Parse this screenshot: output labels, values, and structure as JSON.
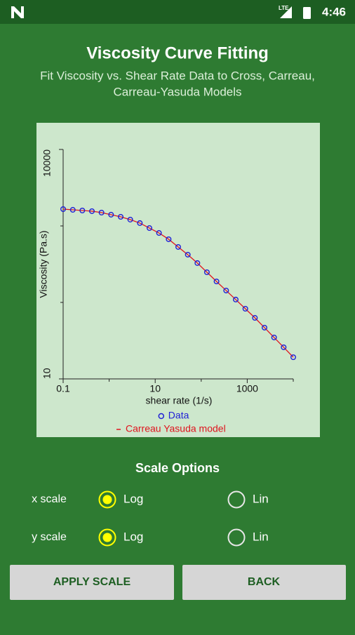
{
  "status_bar": {
    "network": "LTE",
    "time": "4:46"
  },
  "header": {
    "title": "Viscosity Curve Fitting",
    "subtitle_lines": [
      "Fit Viscosity vs. Shear Rate Data to Cross, Carreau,",
      "Carreau-Yasuda Models"
    ]
  },
  "chart_data": {
    "type": "scatter",
    "x_label": "shear rate (1/s)",
    "y_label": "Viscosity (Pa.s)",
    "x_scale": "log",
    "y_scale": "log",
    "x": [
      0.1,
      0.162,
      0.261,
      0.422,
      0.681,
      1.1,
      1.78,
      2.87,
      4.64,
      7.5,
      12.1,
      19.6,
      31.6,
      51.1,
      82.5,
      133,
      215,
      348,
      562,
      909,
      1468,
      2371,
      3831,
      6190,
      10000
    ],
    "series": [
      {
        "name": "Data",
        "style": "markers",
        "color": "#1f1fd6",
        "values": [
          1660,
          1625,
          1592,
          1560,
          1494,
          1403,
          1316,
          1210,
          1090,
          938,
          809,
          670,
          531,
          421,
          327,
          248,
          188,
          143,
          109,
          82.7,
          62.8,
          46.8,
          34.8,
          25.9,
          19.2
        ]
      },
      {
        "name": "Carreau Yasuda model",
        "style": "line",
        "color": "#e0141e",
        "values": [
          1660,
          1625,
          1592,
          1560,
          1494,
          1403,
          1316,
          1210,
          1090,
          938,
          809,
          670,
          531,
          421,
          327,
          248,
          188,
          143,
          109,
          82.7,
          62.8,
          46.8,
          34.8,
          25.9,
          19.2
        ]
      }
    ],
    "xlim": [
      0.1,
      10000
    ],
    "xticks": [
      0.1,
      10,
      1000
    ],
    "x_minor_ticks": [
      1,
      100,
      10000
    ],
    "ylim": [
      10,
      10000
    ],
    "yticks": [
      10,
      10000
    ],
    "y_minor_ticks": [
      100,
      1000
    ],
    "legend": "bottom"
  },
  "scale_options": {
    "title": "Scale Options",
    "rows": [
      {
        "label": "x scale",
        "options": [
          "Log",
          "Lin"
        ],
        "selected": 0
      },
      {
        "label": "y scale",
        "options": [
          "Log",
          "Lin"
        ],
        "selected": 0
      }
    ]
  },
  "buttons": [
    "APPLY SCALE",
    "BACK"
  ]
}
